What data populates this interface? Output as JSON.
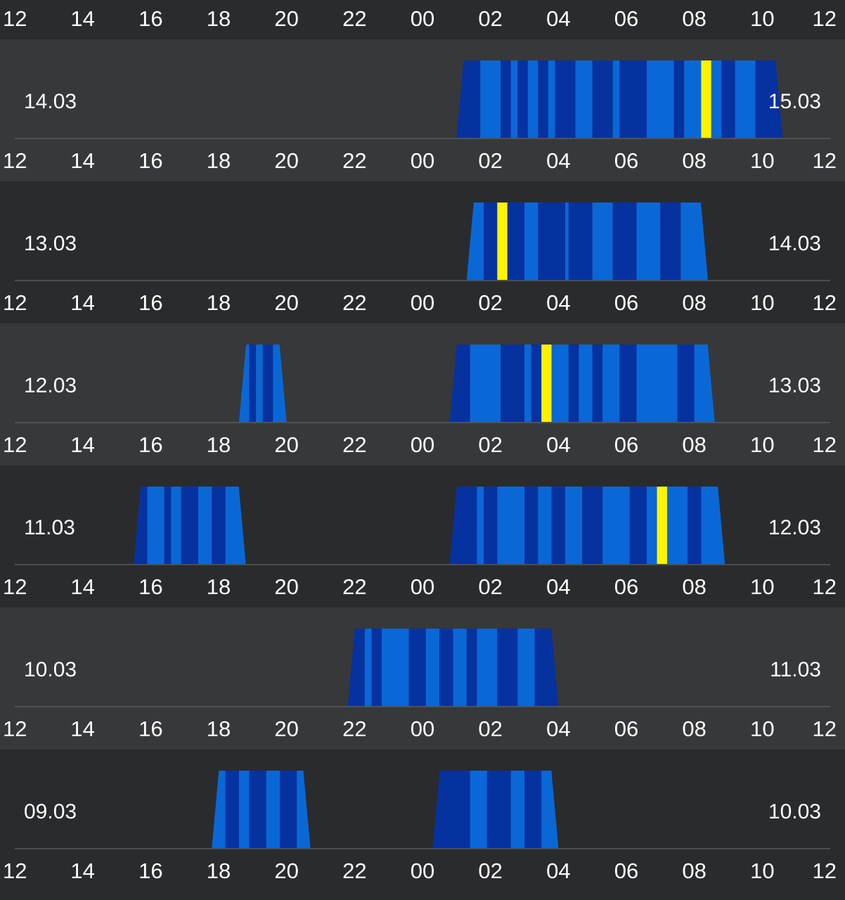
{
  "colors": {
    "background": "#2a2b2d",
    "row_light": "#37383a",
    "row_dark": "#2a2b2d",
    "baseline": "#5a5b5d",
    "light_sleep": "#0a68d6",
    "deep_sleep": "#0632a0",
    "awake": "#fff200",
    "text": "#ffffff"
  },
  "chart_data": {
    "type": "timeline",
    "x_axis_unit": "hour",
    "x_ticks": [
      "12",
      "14",
      "16",
      "18",
      "20",
      "22",
      "00",
      "02",
      "04",
      "06",
      "08",
      "10",
      "12"
    ],
    "xlim": [
      12,
      36
    ],
    "rows": [
      {
        "start_label": "14.03",
        "end_label": "15.03",
        "sessions": [
          {
            "start": 25.0,
            "end": 34.6,
            "segments": [
              {
                "s": 25.0,
                "e": 25.7,
                "st": "deep"
              },
              {
                "s": 25.7,
                "e": 26.3,
                "st": "light"
              },
              {
                "s": 26.3,
                "e": 26.6,
                "st": "deep"
              },
              {
                "s": 26.6,
                "e": 26.8,
                "st": "light"
              },
              {
                "s": 26.8,
                "e": 27.1,
                "st": "deep"
              },
              {
                "s": 27.1,
                "e": 27.4,
                "st": "light"
              },
              {
                "s": 27.4,
                "e": 27.7,
                "st": "deep"
              },
              {
                "s": 27.7,
                "e": 27.9,
                "st": "light"
              },
              {
                "s": 27.9,
                "e": 28.5,
                "st": "deep"
              },
              {
                "s": 28.5,
                "e": 29.0,
                "st": "light"
              },
              {
                "s": 29.0,
                "e": 29.6,
                "st": "deep"
              },
              {
                "s": 29.6,
                "e": 29.8,
                "st": "light"
              },
              {
                "s": 29.8,
                "e": 30.6,
                "st": "deep"
              },
              {
                "s": 30.6,
                "e": 31.4,
                "st": "light"
              },
              {
                "s": 31.4,
                "e": 31.7,
                "st": "deep"
              },
              {
                "s": 31.7,
                "e": 32.2,
                "st": "light"
              },
              {
                "s": 32.2,
                "e": 32.5,
                "st": "awake"
              },
              {
                "s": 32.5,
                "e": 32.8,
                "st": "light"
              },
              {
                "s": 32.8,
                "e": 33.2,
                "st": "deep"
              },
              {
                "s": 33.2,
                "e": 33.8,
                "st": "light"
              },
              {
                "s": 33.8,
                "e": 34.6,
                "st": "deep"
              }
            ]
          }
        ]
      },
      {
        "start_label": "13.03",
        "end_label": "14.03",
        "sessions": [
          {
            "start": 25.3,
            "end": 32.4,
            "segments": [
              {
                "s": 25.3,
                "e": 25.8,
                "st": "light"
              },
              {
                "s": 25.8,
                "e": 26.2,
                "st": "deep"
              },
              {
                "s": 26.2,
                "e": 26.5,
                "st": "awake"
              },
              {
                "s": 26.5,
                "e": 27.0,
                "st": "deep"
              },
              {
                "s": 27.0,
                "e": 27.4,
                "st": "light"
              },
              {
                "s": 27.4,
                "e": 28.2,
                "st": "deep"
              },
              {
                "s": 28.2,
                "e": 28.3,
                "st": "light"
              },
              {
                "s": 28.3,
                "e": 29.0,
                "st": "deep"
              },
              {
                "s": 29.0,
                "e": 29.6,
                "st": "light"
              },
              {
                "s": 29.6,
                "e": 30.3,
                "st": "deep"
              },
              {
                "s": 30.3,
                "e": 31.0,
                "st": "light"
              },
              {
                "s": 31.0,
                "e": 31.6,
                "st": "deep"
              },
              {
                "s": 31.6,
                "e": 32.4,
                "st": "light"
              }
            ]
          }
        ]
      },
      {
        "start_label": "12.03",
        "end_label": "13.03",
        "sessions": [
          {
            "start": 18.6,
            "end": 20.0,
            "segments": [
              {
                "s": 18.6,
                "e": 18.9,
                "st": "light"
              },
              {
                "s": 18.9,
                "e": 19.1,
                "st": "deep"
              },
              {
                "s": 19.1,
                "e": 19.3,
                "st": "light"
              },
              {
                "s": 19.3,
                "e": 19.6,
                "st": "deep"
              },
              {
                "s": 19.6,
                "e": 20.0,
                "st": "light"
              }
            ]
          },
          {
            "start": 24.8,
            "end": 32.6,
            "segments": [
              {
                "s": 24.8,
                "e": 25.4,
                "st": "deep"
              },
              {
                "s": 25.4,
                "e": 26.3,
                "st": "light"
              },
              {
                "s": 26.3,
                "e": 27.0,
                "st": "deep"
              },
              {
                "s": 27.0,
                "e": 27.2,
                "st": "light"
              },
              {
                "s": 27.2,
                "e": 27.5,
                "st": "deep"
              },
              {
                "s": 27.5,
                "e": 27.8,
                "st": "awake"
              },
              {
                "s": 27.8,
                "e": 28.3,
                "st": "light"
              },
              {
                "s": 28.3,
                "e": 28.6,
                "st": "deep"
              },
              {
                "s": 28.6,
                "e": 29.0,
                "st": "light"
              },
              {
                "s": 29.0,
                "e": 29.3,
                "st": "deep"
              },
              {
                "s": 29.3,
                "e": 29.8,
                "st": "light"
              },
              {
                "s": 29.8,
                "e": 30.3,
                "st": "deep"
              },
              {
                "s": 30.3,
                "e": 31.5,
                "st": "light"
              },
              {
                "s": 31.5,
                "e": 32.0,
                "st": "deep"
              },
              {
                "s": 32.0,
                "e": 32.6,
                "st": "light"
              }
            ]
          }
        ]
      },
      {
        "start_label": "11.03",
        "end_label": "12.03",
        "sessions": [
          {
            "start": 15.5,
            "end": 18.8,
            "segments": [
              {
                "s": 15.5,
                "e": 15.9,
                "st": "deep"
              },
              {
                "s": 15.9,
                "e": 16.4,
                "st": "light"
              },
              {
                "s": 16.4,
                "e": 16.6,
                "st": "deep"
              },
              {
                "s": 16.6,
                "e": 16.9,
                "st": "light"
              },
              {
                "s": 16.9,
                "e": 17.4,
                "st": "deep"
              },
              {
                "s": 17.4,
                "e": 17.8,
                "st": "light"
              },
              {
                "s": 17.8,
                "e": 18.2,
                "st": "deep"
              },
              {
                "s": 18.2,
                "e": 18.8,
                "st": "light"
              }
            ]
          },
          {
            "start": 24.8,
            "end": 32.9,
            "segments": [
              {
                "s": 24.8,
                "e": 25.6,
                "st": "deep"
              },
              {
                "s": 25.6,
                "e": 25.8,
                "st": "light"
              },
              {
                "s": 25.8,
                "e": 26.2,
                "st": "deep"
              },
              {
                "s": 26.2,
                "e": 27.0,
                "st": "light"
              },
              {
                "s": 27.0,
                "e": 27.4,
                "st": "deep"
              },
              {
                "s": 27.4,
                "e": 27.8,
                "st": "light"
              },
              {
                "s": 27.8,
                "e": 28.2,
                "st": "deep"
              },
              {
                "s": 28.2,
                "e": 28.7,
                "st": "light"
              },
              {
                "s": 28.7,
                "e": 29.3,
                "st": "deep"
              },
              {
                "s": 29.3,
                "e": 30.1,
                "st": "light"
              },
              {
                "s": 30.1,
                "e": 30.6,
                "st": "deep"
              },
              {
                "s": 30.6,
                "e": 30.9,
                "st": "light"
              },
              {
                "s": 30.9,
                "e": 31.2,
                "st": "awake"
              },
              {
                "s": 31.2,
                "e": 31.8,
                "st": "light"
              },
              {
                "s": 31.8,
                "e": 32.2,
                "st": "deep"
              },
              {
                "s": 32.2,
                "e": 32.9,
                "st": "light"
              }
            ]
          }
        ]
      },
      {
        "start_label": "10.03",
        "end_label": "11.03",
        "sessions": [
          {
            "start": 21.8,
            "end": 28.0,
            "segments": [
              {
                "s": 21.8,
                "e": 22.3,
                "st": "deep"
              },
              {
                "s": 22.3,
                "e": 22.5,
                "st": "light"
              },
              {
                "s": 22.5,
                "e": 22.8,
                "st": "deep"
              },
              {
                "s": 22.8,
                "e": 23.6,
                "st": "light"
              },
              {
                "s": 23.6,
                "e": 24.1,
                "st": "deep"
              },
              {
                "s": 24.1,
                "e": 24.5,
                "st": "light"
              },
              {
                "s": 24.5,
                "e": 24.9,
                "st": "deep"
              },
              {
                "s": 24.9,
                "e": 25.3,
                "st": "light"
              },
              {
                "s": 25.3,
                "e": 25.6,
                "st": "deep"
              },
              {
                "s": 25.6,
                "e": 26.2,
                "st": "light"
              },
              {
                "s": 26.2,
                "e": 26.8,
                "st": "deep"
              },
              {
                "s": 26.8,
                "e": 27.3,
                "st": "light"
              },
              {
                "s": 27.3,
                "e": 28.0,
                "st": "deep"
              }
            ]
          }
        ]
      },
      {
        "start_label": "09.03",
        "end_label": "10.03",
        "sessions": [
          {
            "start": 17.8,
            "end": 20.7,
            "segments": [
              {
                "s": 17.8,
                "e": 18.2,
                "st": "light"
              },
              {
                "s": 18.2,
                "e": 18.6,
                "st": "deep"
              },
              {
                "s": 18.6,
                "e": 18.9,
                "st": "light"
              },
              {
                "s": 18.9,
                "e": 19.4,
                "st": "deep"
              },
              {
                "s": 19.4,
                "e": 19.8,
                "st": "light"
              },
              {
                "s": 19.8,
                "e": 20.3,
                "st": "deep"
              },
              {
                "s": 20.3,
                "e": 20.7,
                "st": "light"
              }
            ]
          },
          {
            "start": 24.3,
            "end": 28.0,
            "segments": [
              {
                "s": 24.3,
                "e": 25.4,
                "st": "deep"
              },
              {
                "s": 25.4,
                "e": 25.9,
                "st": "light"
              },
              {
                "s": 25.9,
                "e": 26.6,
                "st": "deep"
              },
              {
                "s": 26.6,
                "e": 27.0,
                "st": "light"
              },
              {
                "s": 27.0,
                "e": 27.5,
                "st": "deep"
              },
              {
                "s": 27.5,
                "e": 28.0,
                "st": "light"
              }
            ]
          }
        ]
      }
    ]
  }
}
